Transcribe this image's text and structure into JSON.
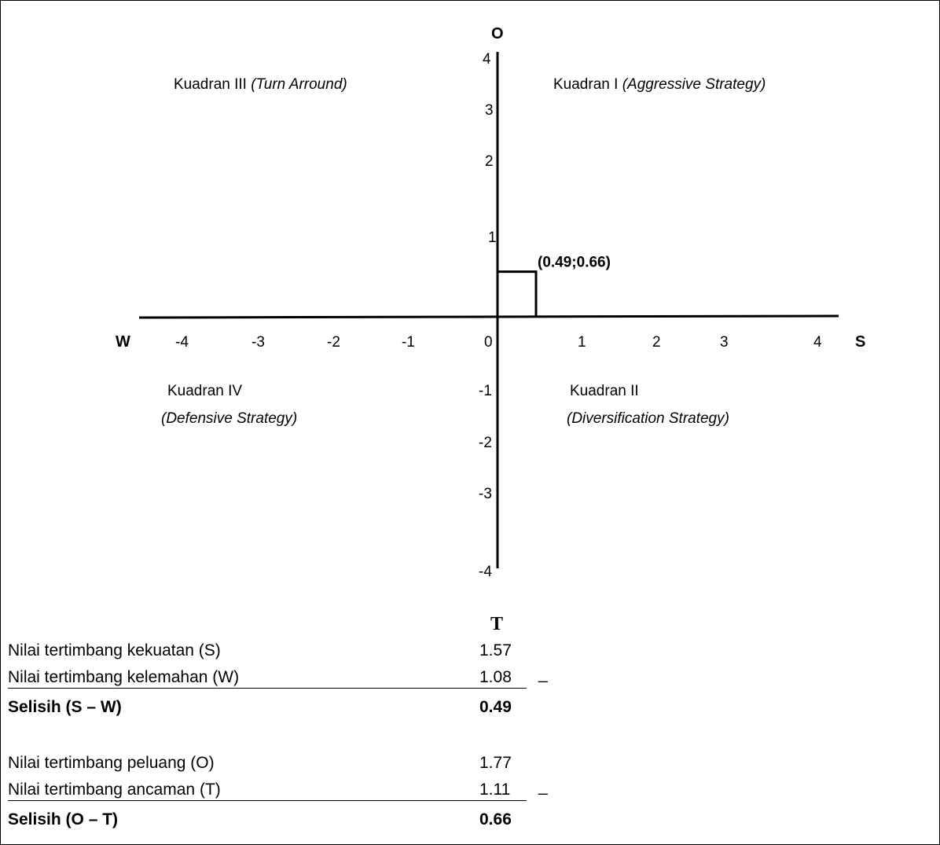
{
  "axes": {
    "top_label": "O",
    "bottom_label": "T",
    "left_label": "W",
    "right_label": "S",
    "x_ticks": [
      "-4",
      "-3",
      "-2",
      "-1",
      "0",
      "1",
      "2",
      "3",
      "4"
    ],
    "y_ticks_positive": [
      "4",
      "3",
      "2",
      "1"
    ],
    "y_ticks_negative": [
      "-1",
      "-2",
      "-3",
      "-4"
    ],
    "range": [
      -4,
      4
    ]
  },
  "quadrants": {
    "q1": {
      "name": "Kuadran I",
      "strategy": "(Aggressive Strategy)"
    },
    "q2": {
      "name": "Kuadran II",
      "strategy": "(Diversification Strategy)"
    },
    "q3": {
      "name": "Kuadran III",
      "strategy": "(Turn Arround)"
    },
    "q4": {
      "name": "Kuadran IV",
      "strategy": "(Defensive Strategy)"
    }
  },
  "point": {
    "x": 0.49,
    "y": 0.66,
    "label": "(0.49;0.66)"
  },
  "calculation": {
    "sw": [
      {
        "label": "Nilai tertimbang kekuatan (S)",
        "value": "1.57"
      },
      {
        "label": "Nilai tertimbang kelemahan (W)",
        "value": "1.08",
        "op": "_"
      },
      {
        "label": "Selisih (S – W)",
        "value": "0.49"
      }
    ],
    "ot": [
      {
        "label": "Nilai tertimbang peluang (O)",
        "value": "1.77"
      },
      {
        "label": "Nilai tertimbang ancaman (T)",
        "value": "1.11",
        "op": "_"
      },
      {
        "label": "Selisih (O – T)",
        "value": "0.66"
      }
    ]
  }
}
